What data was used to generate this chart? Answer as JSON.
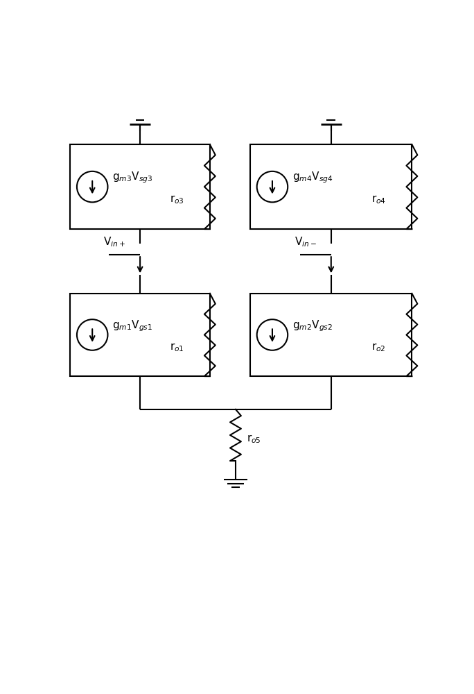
{
  "bg_color": "#ffffff",
  "line_color": "#000000",
  "line_width": 1.5,
  "figsize": [
    6.84,
    10.0
  ],
  "dpi": 100,
  "labels": {
    "gm3": "g$_{m3}$V$_{sg3}$",
    "gm4": "g$_{m4}$V$_{sg4}$",
    "gm1": "g$_{m1}$V$_{gs1}$",
    "gm2": "g$_{m2}$V$_{gs2}$",
    "ro3": "r$_{o3}$",
    "ro4": "r$_{o4}$",
    "ro1": "r$_{o1}$",
    "ro2": "r$_{o2}$",
    "ro5": "r$_{o5}$",
    "vin_plus": "V$_{in+}$",
    "vin_minus": "V$_{in-}$"
  },
  "xlim": [
    0,
    10
  ],
  "ylim": [
    0,
    14.0
  ]
}
